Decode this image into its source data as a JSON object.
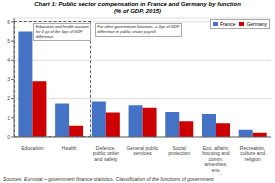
{
  "chart_data": {
    "type": "bar",
    "title": "Chart 1: Public sector compensation in France and Germany by function",
    "subtitle": "(% of GDP, 2015)",
    "categories": [
      "Education",
      "Health",
      "Defence,\npublic order\nand safety",
      "General public\nservices",
      "Social\nprotection",
      "Eco. affairs;\nhousing and\ncomm.\namenities;\nenv.\nprotection",
      "Recreation,\nculture and\nreligion"
    ],
    "series": [
      {
        "name": "France",
        "color": "#4472C4",
        "values": [
          5.5,
          1.75,
          1.85,
          1.65,
          1.3,
          1.2,
          0.38
        ]
      },
      {
        "name": "Germany",
        "color": "#CC0000",
        "values": [
          2.9,
          0.58,
          1.28,
          1.52,
          0.82,
          0.72,
          0.22
        ]
      }
    ],
    "ylim": [
      0,
      6.2
    ],
    "yticks": [
      0,
      1,
      2,
      3,
      4,
      5,
      6
    ],
    "grid": true,
    "legend": "upper right",
    "annotations": [
      "Education and health account\nfor 3 pp of the 5pp of GDP\ndifference",
      "For other government functions, a 2pp of GDP\ndifference in public sector payroll"
    ],
    "source": "Sources: Eurostat – government finance statistics. Classification of the functions of government"
  }
}
